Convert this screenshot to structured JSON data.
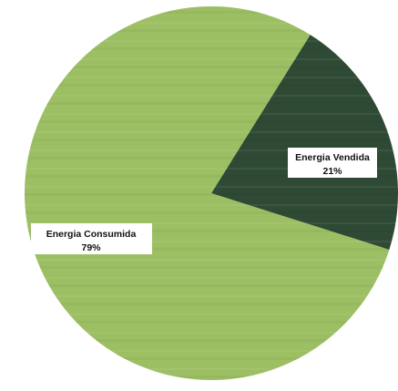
{
  "chart_data": {
    "type": "pie",
    "title": "",
    "slices": [
      {
        "label": "Energia Vendida",
        "value": 21,
        "value_label": "21%",
        "color": "#2f4a34"
      },
      {
        "label": "Energia Consumida",
        "value": 79,
        "value_label": "79%",
        "color": "#9cbf64"
      }
    ],
    "start_angle_deg": 32,
    "legend": "none",
    "data_labels": "inside"
  }
}
